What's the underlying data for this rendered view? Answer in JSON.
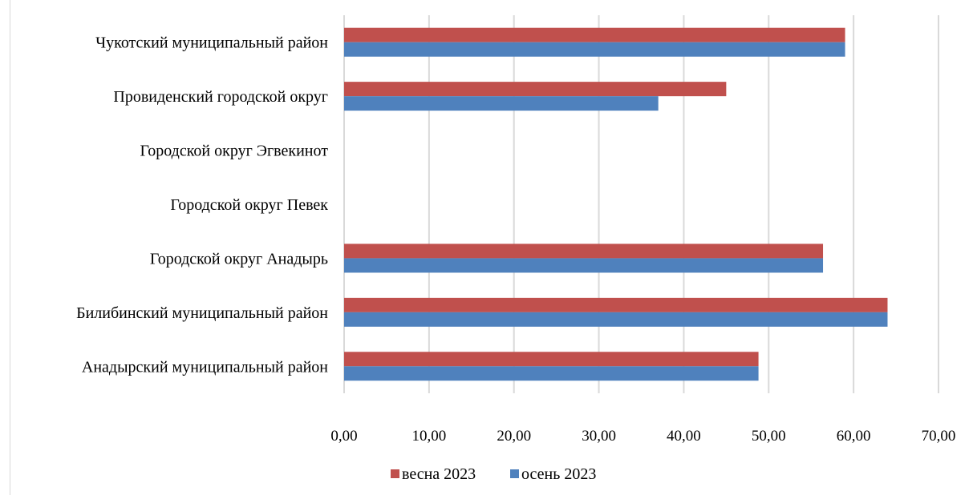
{
  "chart_data": {
    "type": "bar",
    "orientation": "horizontal",
    "title": "",
    "xlabel": "",
    "ylabel": "",
    "categories": [
      "Чукотский муниципальный район",
      "Провиденский городской округ",
      "Городской округ Эгвекинот",
      "Городской округ Певек",
      "Городской округ Анадырь",
      "Билибинский муниципальный район",
      "Анадырский муниципальный район"
    ],
    "series": [
      {
        "name": "весна 2023",
        "color": "#c0504d",
        "values": [
          59,
          45,
          0,
          0,
          56.4,
          64,
          48.8
        ]
      },
      {
        "name": "осень 2023",
        "color": "#4f81bd",
        "values": [
          59,
          37,
          0,
          0,
          56.4,
          64,
          48.8
        ]
      }
    ],
    "xlim": [
      0,
      70
    ],
    "x_ticks": [
      "0,00",
      "10,00",
      "20,00",
      "30,00",
      "40,00",
      "50,00",
      "60,00",
      "70,00"
    ],
    "grid": "vertical",
    "gridline_color": "#d9d9d9",
    "legend_position": "bottom"
  }
}
